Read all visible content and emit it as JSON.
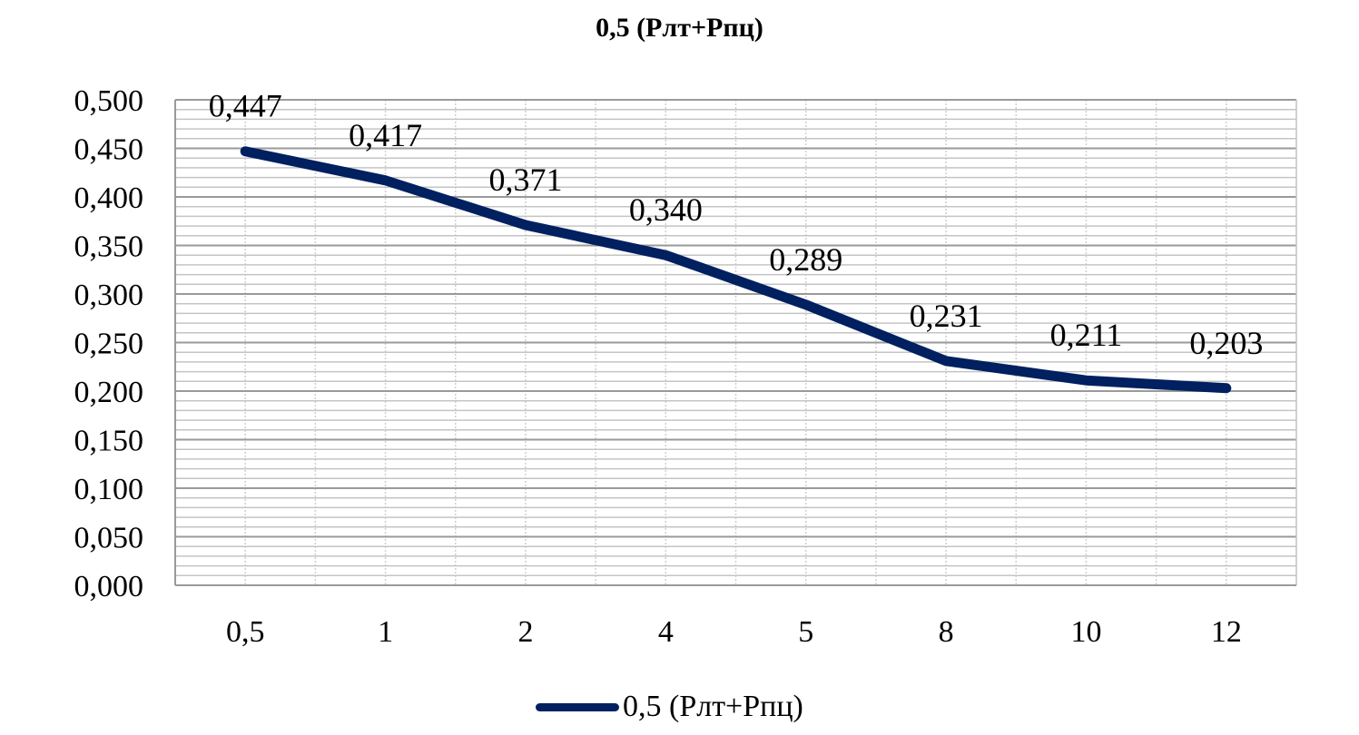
{
  "chart_data": {
    "type": "line",
    "title": "0,5 (Рлт+Рпц)",
    "categories": [
      "0,5",
      "1",
      "2",
      "4",
      "5",
      "8",
      "10",
      "12"
    ],
    "series": [
      {
        "name": "0,5 (Рлт+Рпц)",
        "values": [
          0.447,
          0.417,
          0.371,
          0.34,
          0.289,
          0.231,
          0.211,
          0.203
        ],
        "labels": [
          "0,447",
          "0,417",
          "0,371",
          "0,340",
          "0,289",
          "0,231",
          "0,211",
          "0,203"
        ],
        "color": "#002060"
      }
    ],
    "ylim": [
      0,
      0.5
    ],
    "yticks": [
      "0,000",
      "0,050",
      "0,100",
      "0,150",
      "0,200",
      "0,250",
      "0,300",
      "0,350",
      "0,400",
      "0,450",
      "0,500"
    ],
    "xlabel": "",
    "ylabel": "",
    "grid": true,
    "legend": "bottom"
  }
}
